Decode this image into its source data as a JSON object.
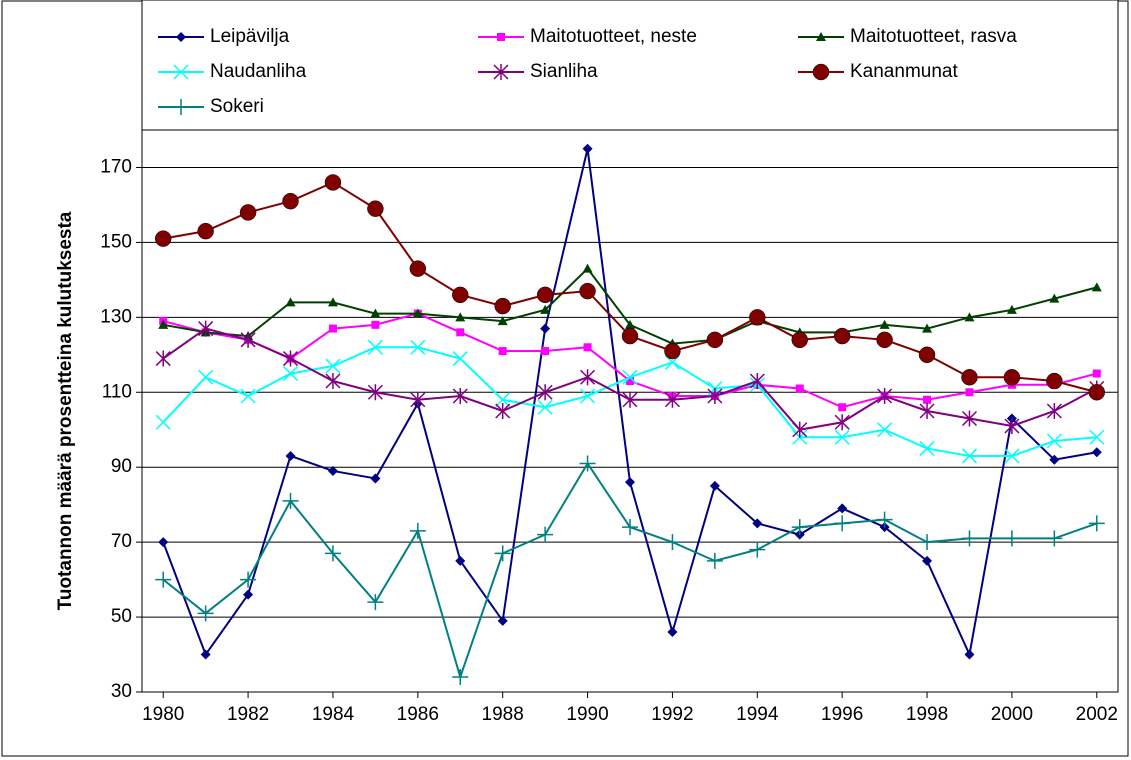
{
  "chart_data": {
    "type": "line",
    "y_label": "Tuotannon määrä prosentteina kulutuksesta",
    "x": [
      1980,
      1981,
      1982,
      1983,
      1984,
      1985,
      1986,
      1987,
      1988,
      1989,
      1990,
      1991,
      1992,
      1993,
      1994,
      1995,
      1996,
      1997,
      1998,
      1999,
      2000,
      2001,
      2002
    ],
    "xlim": [
      1979.5,
      2002.5
    ],
    "xticks": [
      1980,
      1982,
      1984,
      1986,
      1988,
      1990,
      1992,
      1994,
      1996,
      1998,
      2000,
      2002
    ],
    "ylim": [
      30,
      180
    ],
    "yticks": [
      30,
      50,
      70,
      90,
      110,
      130,
      150,
      170
    ],
    "grid": true,
    "legend": "top",
    "series": [
      {
        "name": "Leipävilja",
        "color": "#000080",
        "marker": "diamond",
        "values": [
          70,
          40,
          56,
          93,
          89,
          87,
          107,
          65,
          49,
          127,
          175,
          86,
          46,
          85,
          75,
          72,
          79,
          74,
          65,
          40,
          103,
          92,
          94
        ]
      },
      {
        "name": "Maitotuotteet, neste",
        "color": "#ff00ff",
        "marker": "square",
        "values": [
          129,
          126,
          124,
          119,
          127,
          128,
          131,
          126,
          121,
          121,
          122,
          113,
          109,
          109,
          112,
          111,
          106,
          109,
          108,
          110,
          112,
          112,
          115
        ]
      },
      {
        "name": "Maitotuotteet, rasva",
        "color": "#004000",
        "marker": "triangle",
        "values": [
          128,
          126,
          125,
          134,
          134,
          131,
          131,
          130,
          129,
          132,
          143,
          128,
          123,
          124,
          129,
          126,
          126,
          128,
          127,
          130,
          132,
          135,
          138
        ]
      },
      {
        "name": "Naudanliha",
        "color": "#00ffff",
        "marker": "x",
        "values": [
          102,
          114,
          109,
          115,
          117,
          122,
          122,
          119,
          108,
          106,
          109,
          114,
          118,
          111,
          112,
          98,
          98,
          100,
          95,
          93,
          93,
          97,
          98
        ]
      },
      {
        "name": "Sianliha",
        "color": "#800080",
        "marker": "star",
        "values": [
          119,
          127,
          124,
          119,
          113,
          110,
          108,
          109,
          105,
          110,
          114,
          108,
          108,
          109,
          113,
          100,
          102,
          109,
          105,
          103,
          101,
          105,
          111
        ]
      },
      {
        "name": "Kananmunat",
        "color": "#800000",
        "marker": "circle",
        "values": [
          151,
          153,
          158,
          161,
          166,
          159,
          143,
          136,
          133,
          136,
          137,
          125,
          121,
          124,
          130,
          124,
          125,
          124,
          120,
          114,
          114,
          113,
          110
        ]
      },
      {
        "name": "Sokeri",
        "color": "#008080",
        "marker": "plus",
        "values": [
          60,
          51,
          60,
          81,
          67,
          54,
          73,
          34,
          67,
          72,
          91,
          74,
          70,
          65,
          68,
          74,
          75,
          76,
          70,
          71,
          71,
          71,
          75
        ]
      }
    ]
  }
}
